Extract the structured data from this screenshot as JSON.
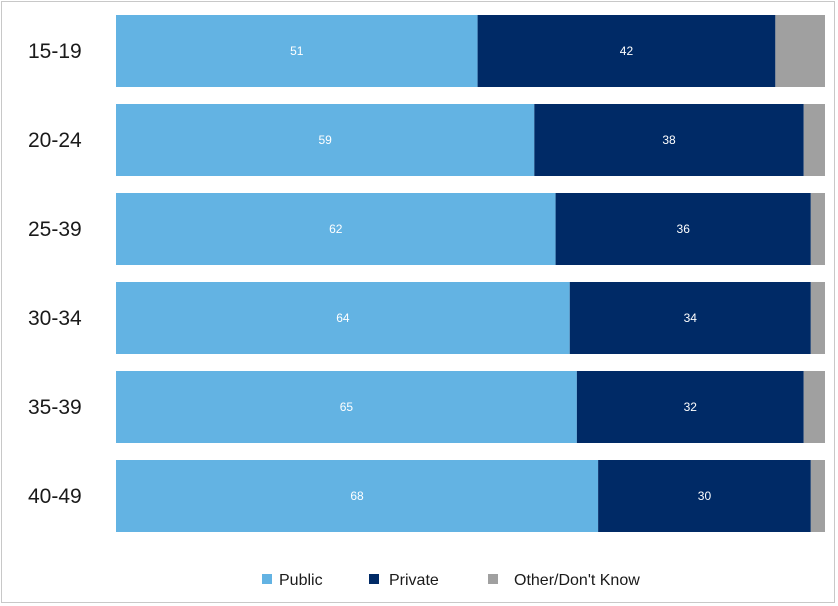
{
  "chart_data": {
    "type": "bar",
    "orientation": "horizontal",
    "stacked": true,
    "categories": [
      "15-19",
      "20-24",
      "25-39",
      "30-34",
      "35-39",
      "40-49"
    ],
    "series": [
      {
        "name": "Public",
        "color": "#63b3e3",
        "values": [
          51,
          59,
          62,
          64,
          65,
          68
        ]
      },
      {
        "name": "Private",
        "color": "#002a66",
        "values": [
          42,
          38,
          36,
          34,
          32,
          30
        ]
      },
      {
        "name": "Other/Don't Know",
        "color": "#a0a0a0",
        "values": [
          7,
          3,
          2,
          2,
          3,
          2
        ]
      }
    ],
    "value_labels": {
      "Public": [
        "51",
        "59",
        "62",
        "64",
        "65",
        "68"
      ],
      "Private": [
        "42",
        "38",
        "36",
        "34",
        "32",
        "30"
      ]
    },
    "xlim": [
      0,
      100
    ],
    "legend_position": "bottom",
    "grid": false
  }
}
